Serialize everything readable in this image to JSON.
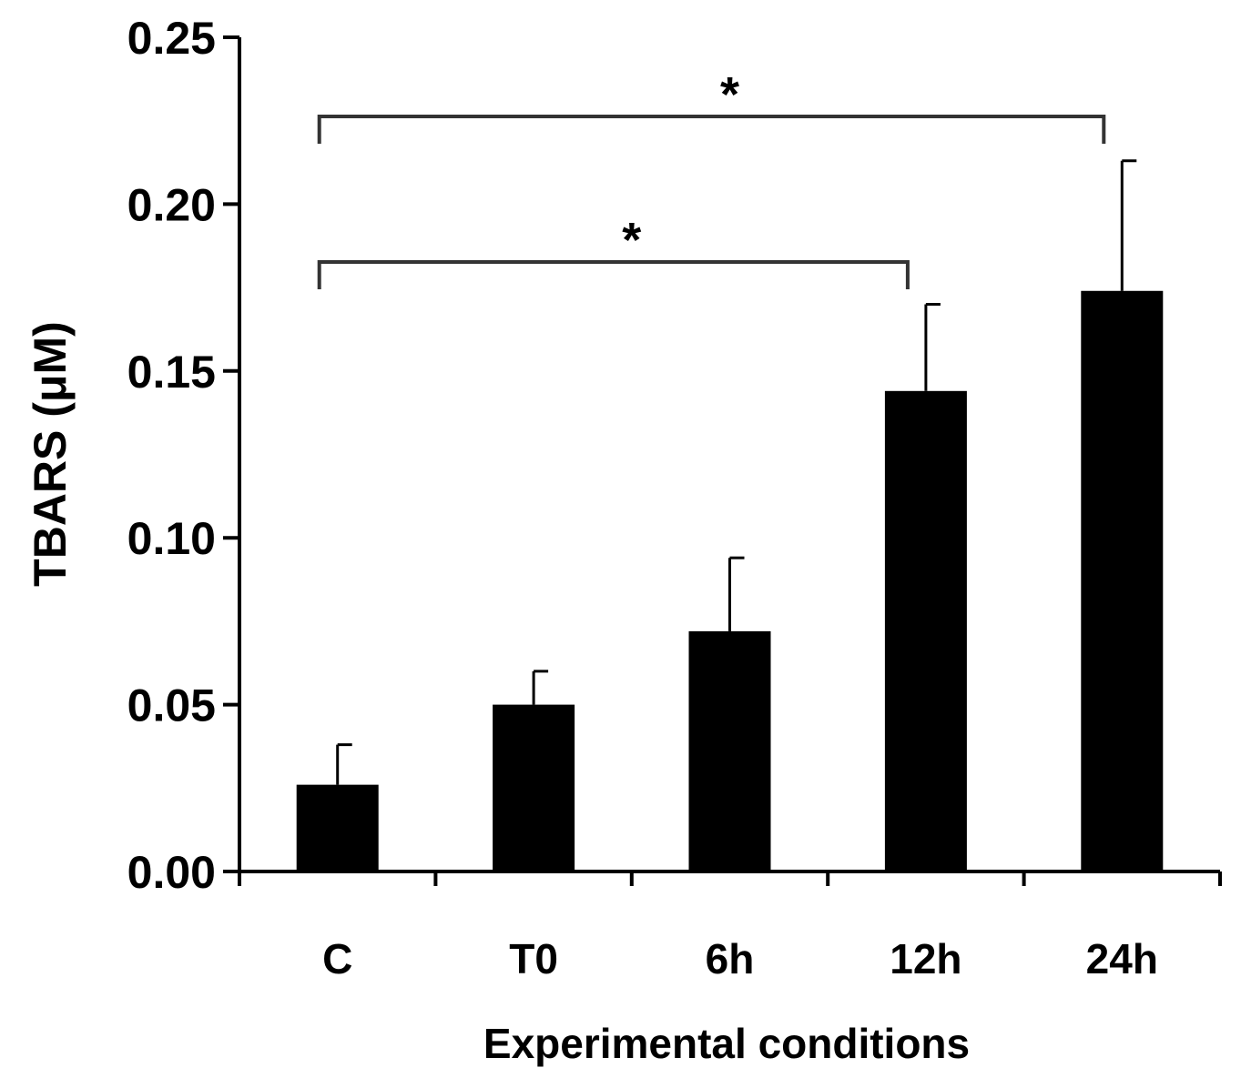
{
  "chart_data": {
    "type": "bar",
    "title": "",
    "xlabel": "Experimental conditions",
    "ylabel": "TBARS (μM)",
    "ylim": [
      0,
      0.25
    ],
    "yticks": [
      "0.00",
      "0.05",
      "0.10",
      "0.15",
      "0.20",
      "0.25"
    ],
    "categories": [
      "C",
      "T0",
      "6h",
      "12h",
      "24h"
    ],
    "values": [
      0.026,
      0.05,
      0.072,
      0.144,
      0.174
    ],
    "errors": [
      0.012,
      0.01,
      0.022,
      0.026,
      0.039
    ],
    "bar_color": "#000000",
    "grid": false,
    "legend": "none",
    "significance": [
      {
        "from": "C",
        "to": "24h",
        "label": "*"
      },
      {
        "from": "C",
        "to": "12h",
        "label": "*"
      }
    ]
  }
}
